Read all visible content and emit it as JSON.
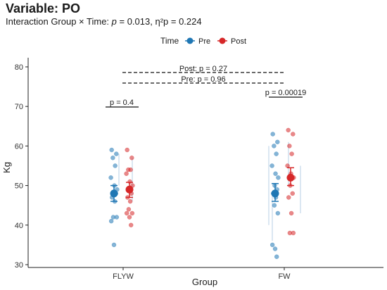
{
  "title": "Variable: PO",
  "subtitle": {
    "prefix": "Interaction Group × Time: ",
    "p_symbol": "p",
    "p_value": " = 0.013, η²p = 0.224"
  },
  "chart_data": {
    "type": "scatter",
    "xlabel": "Group",
    "ylabel": "Kg",
    "categories": [
      "FLYW",
      "FW"
    ],
    "ylim": [
      30,
      82
    ],
    "yticks": [
      30,
      40,
      50,
      60,
      70,
      80
    ],
    "grid": false,
    "legend": {
      "title": "Time",
      "position": "top"
    },
    "series": [
      {
        "name": "Pre",
        "color": "#1f77b4",
        "means": [
          48.0,
          48.0
        ],
        "ci": [
          [
            46.0,
            50.0
          ],
          [
            46.0,
            50.5
          ]
        ],
        "points": [
          [
            59,
            58,
            57,
            55,
            52,
            50,
            49,
            48,
            48,
            47,
            46,
            42,
            42,
            41,
            35
          ],
          [
            63,
            61,
            60,
            58,
            55,
            53,
            52,
            50,
            49,
            48,
            47,
            45,
            43,
            35,
            34,
            32
          ]
        ]
      },
      {
        "name": "Post",
        "color": "#d62728",
        "means": [
          49.0,
          52.0
        ],
        "ci": [
          [
            47.0,
            50.8
          ],
          [
            50.0,
            54.5
          ]
        ],
        "points": [
          [
            59,
            57,
            54,
            54,
            53,
            51,
            50,
            49,
            48,
            47,
            46,
            44,
            43,
            43,
            42,
            40
          ],
          [
            64,
            63,
            60,
            58,
            55,
            53,
            52,
            50,
            48,
            47,
            43,
            38,
            38
          ]
        ]
      }
    ],
    "annotations": [
      {
        "text": "p = 0.4",
        "group": "FLYW"
      },
      {
        "text": "p = 0.00019",
        "group": "FW"
      },
      {
        "text": "Post: p = 0.27",
        "group": "between"
      },
      {
        "text": "Pre: p = 0.96",
        "group": "between"
      }
    ]
  }
}
